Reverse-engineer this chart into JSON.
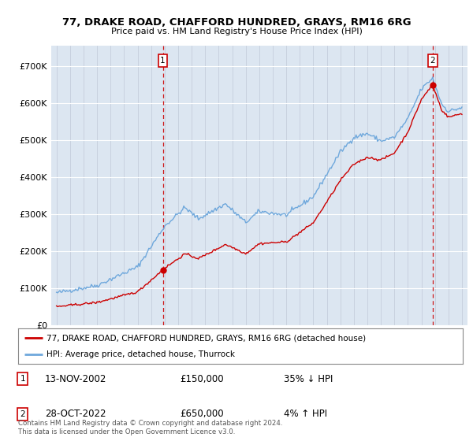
{
  "title": "77, DRAKE ROAD, CHAFFORD HUNDRED, GRAYS, RM16 6RG",
  "subtitle": "Price paid vs. HM Land Registry's House Price Index (HPI)",
  "legend_line1": "77, DRAKE ROAD, CHAFFORD HUNDRED, GRAYS, RM16 6RG (detached house)",
  "legend_line2": "HPI: Average price, detached house, Thurrock",
  "sale1_date": "13-NOV-2002",
  "sale1_price": "£150,000",
  "sale1_hpi": "35% ↓ HPI",
  "sale1_year": 2002.87,
  "sale1_value": 150000,
  "sale2_date": "28-OCT-2022",
  "sale2_price": "£650,000",
  "sale2_hpi": "4% ↑ HPI",
  "sale2_year": 2022.83,
  "sale2_value": 650000,
  "footer": "Contains HM Land Registry data © Crown copyright and database right 2024.\nThis data is licensed under the Open Government Licence v3.0.",
  "hpi_color": "#6fa8dc",
  "sale_color": "#cc0000",
  "dashed_color": "#cc0000",
  "plot_bg": "#dce6f1",
  "ylim_max": 700000,
  "xlim_start": 1994.6,
  "xlim_end": 2025.4
}
